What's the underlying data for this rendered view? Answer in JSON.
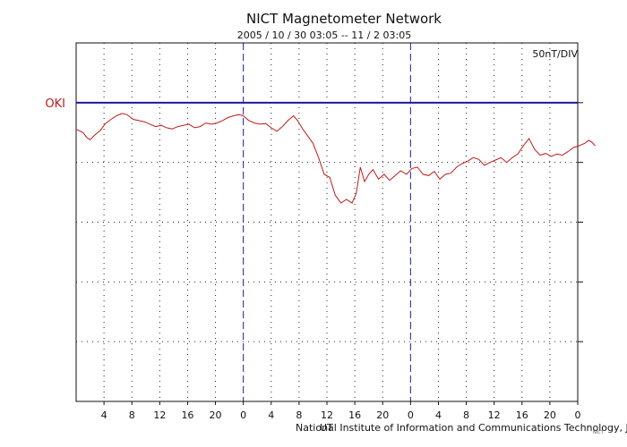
{
  "chart_data": {
    "type": "line",
    "title": "NICT Magnetometer Network",
    "subtitle": "2005 / 10 / 30   03:05 -- 11 / 2   03:05",
    "scale_label": "50nT/DIV",
    "credit": "National Institute of Information and Communications Technology, Japan",
    "credit_overlap": "UT",
    "tiny_mark": "NICT",
    "xlim": [
      -3.0,
      69.0
    ],
    "x_tick_labels": [
      {
        "x": 1,
        "label": "4"
      },
      {
        "x": 5,
        "label": "8"
      },
      {
        "x": 9,
        "label": "12"
      },
      {
        "x": 13,
        "label": "16"
      },
      {
        "x": 17,
        "label": "20"
      },
      {
        "x": 21,
        "label": "0"
      },
      {
        "x": 25,
        "label": "4"
      },
      {
        "x": 29,
        "label": "8"
      },
      {
        "x": 33,
        "label": "12"
      },
      {
        "x": 37,
        "label": "16"
      },
      {
        "x": 41,
        "label": "20"
      },
      {
        "x": 45,
        "label": "0"
      },
      {
        "x": 49,
        "label": "4"
      },
      {
        "x": 53,
        "label": "8"
      },
      {
        "x": 57,
        "label": "12"
      },
      {
        "x": 61,
        "label": "16"
      },
      {
        "x": 65,
        "label": "20"
      },
      {
        "x": 69,
        "label": "0"
      }
    ],
    "day_boundaries": [
      21,
      45,
      69
    ],
    "y_divisions": 6,
    "ylim_div": [
      -5.0,
      1.0
    ],
    "grid": true,
    "series": [
      {
        "name": "OKI",
        "color": "#c01a1a",
        "baseline_color": "#1a1aa0",
        "x": [
          -2.9,
          -2.0,
          -1.5,
          -1.0,
          -0.3,
          0.5,
          1.2,
          2.0,
          2.8,
          3.6,
          4.3,
          5.2,
          6.0,
          6.8,
          7.6,
          8.4,
          9.2,
          10.0,
          10.8,
          11.6,
          12.4,
          13.2,
          14.0,
          14.8,
          15.6,
          16.4,
          17.2,
          18.0,
          18.8,
          19.6,
          20.4,
          21.0,
          21.8,
          22.6,
          23.4,
          24.2,
          25.0,
          25.8,
          26.6,
          27.4,
          28.2,
          28.8,
          29.4,
          30.2,
          31.0,
          31.8,
          32.6,
          33.4,
          34.2,
          35.0,
          35.8,
          36.6,
          37.2,
          37.8,
          38.4,
          39.0,
          39.6,
          40.4,
          41.2,
          42.0,
          42.8,
          43.6,
          44.4,
          45.2,
          46.0,
          46.8,
          47.6,
          48.4,
          49.2,
          50.0,
          50.8,
          51.6,
          52.4,
          53.2,
          54.0,
          54.8,
          55.6,
          56.4,
          57.2,
          58.0,
          58.8,
          59.6,
          60.4,
          61.2,
          62.0,
          62.8,
          63.6,
          64.4,
          65.2,
          66.0,
          66.8,
          67.6,
          68.4,
          69.2,
          70.0,
          70.6,
          71.0,
          71.5
        ],
        "y_div": [
          -0.45,
          -0.5,
          -0.58,
          -0.62,
          -0.54,
          -0.46,
          -0.35,
          -0.28,
          -0.22,
          -0.18,
          -0.2,
          -0.28,
          -0.3,
          -0.32,
          -0.36,
          -0.4,
          -0.38,
          -0.42,
          -0.44,
          -0.4,
          -0.38,
          -0.36,
          -0.42,
          -0.4,
          -0.34,
          -0.36,
          -0.34,
          -0.3,
          -0.25,
          -0.22,
          -0.2,
          -0.22,
          -0.3,
          -0.34,
          -0.36,
          -0.35,
          -0.42,
          -0.48,
          -0.4,
          -0.3,
          -0.22,
          -0.3,
          -0.42,
          -0.55,
          -0.68,
          -0.92,
          -1.2,
          -1.25,
          -1.55,
          -1.68,
          -1.62,
          -1.68,
          -1.52,
          -1.08,
          -1.32,
          -1.2,
          -1.12,
          -1.28,
          -1.2,
          -1.3,
          -1.22,
          -1.14,
          -1.2,
          -1.1,
          -1.08,
          -1.2,
          -1.22,
          -1.15,
          -1.28,
          -1.2,
          -1.18,
          -1.08,
          -1.02,
          -0.98,
          -0.92,
          -0.95,
          -1.05,
          -1.0,
          -0.96,
          -0.92,
          -1.0,
          -0.92,
          -0.86,
          -0.72,
          -0.6,
          -0.78,
          -0.88,
          -0.85,
          -0.9,
          -0.86,
          -0.88,
          -0.82,
          -0.75,
          -0.72,
          -0.68,
          -0.63,
          -0.66,
          -0.72
        ]
      }
    ]
  }
}
